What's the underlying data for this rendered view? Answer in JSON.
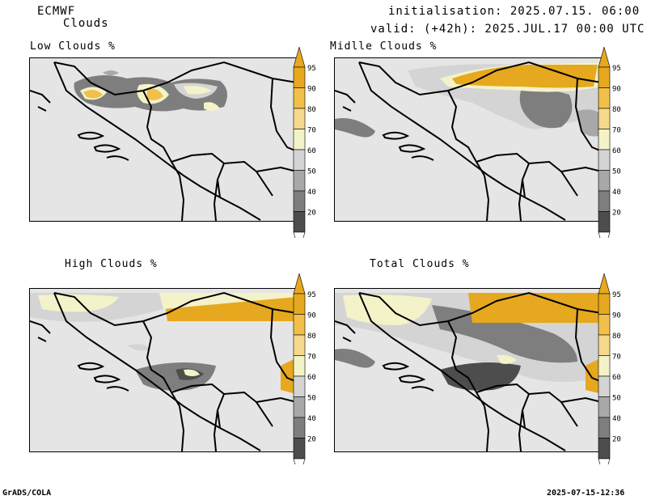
{
  "header": {
    "model": "ECMWF",
    "product": "Clouds",
    "initialisation": "initialisation: 2025.07.15. 06:00 UTC",
    "valid": "valid: (+42h): 2025.JUL.17 00:00 UTC"
  },
  "panels": [
    {
      "title": "Low Clouds %"
    },
    {
      "title": "Midlle Clouds %"
    },
    {
      "title": "High Clouds %"
    },
    {
      "title": "Total Clouds %"
    }
  ],
  "colorbar": {
    "labels": [
      "95",
      "90",
      "80",
      "70",
      "60",
      "50",
      "40",
      "20"
    ],
    "colors": [
      "#e6a81e",
      "#f1c04b",
      "#f5d98c",
      "#f3f2c9",
      "#d4d4d4",
      "#a8a8a8",
      "#7e7e7e",
      "#4d4d4d"
    ]
  },
  "footer": {
    "left": "GrADS/COLA",
    "right": "2025-07-15-12:36"
  }
}
